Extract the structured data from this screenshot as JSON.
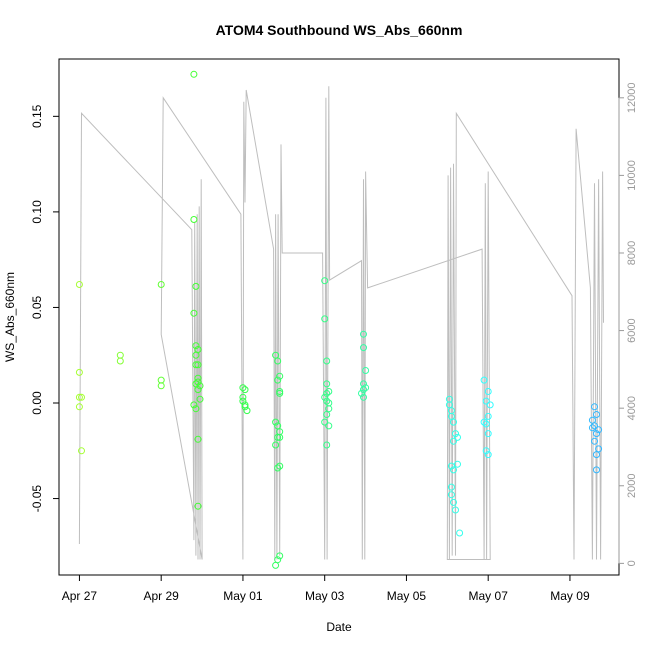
{
  "chart_data": {
    "type": "scatter",
    "title": "ATOM4 Southbound WS_Abs_660nm",
    "xlabel": "Date",
    "ylabel": "WS_Abs_660nm",
    "x_ticks": [
      "Apr 27",
      "Apr 29",
      "May 01",
      "May 03",
      "May 05",
      "May 07",
      "May 09"
    ],
    "x_tick_days": [
      0,
      2,
      4,
      6,
      8,
      10,
      12
    ],
    "xlim_days": [
      -0.5,
      13.2
    ],
    "ylim": [
      -0.09,
      0.18
    ],
    "y_ticks": [
      -0.05,
      0.0,
      0.05,
      0.1,
      0.15
    ],
    "y_tick_labels": [
      "-0.05",
      "0.00",
      "0.05",
      "0.10",
      "0.15"
    ],
    "y2_lim": [
      -300,
      13000
    ],
    "y2_ticks": [
      0,
      2000,
      4000,
      6000,
      8000,
      10000,
      12000
    ],
    "y2_tick_labels": [
      "0",
      "2000",
      "4000",
      "6000",
      "8000",
      "10000",
      "12000"
    ],
    "grid": false,
    "colors": {
      "altitude_line": "#bebebe",
      "point_gradient": [
        "#a6ff33",
        "#33ff33",
        "#33ff99",
        "#33ffff",
        "#33aaff"
      ]
    },
    "series": [
      {
        "kind": "points",
        "points": [
          [
            0.0,
            0.062
          ],
          [
            0.0,
            0.016
          ],
          [
            0.0,
            0.003
          ],
          [
            0.05,
            0.003
          ],
          [
            0.0,
            -0.002
          ],
          [
            0.05,
            -0.025
          ],
          [
            1.0,
            0.025
          ],
          [
            1.0,
            0.022
          ],
          [
            2.0,
            0.062
          ],
          [
            2.0,
            0.012
          ],
          [
            2.0,
            0.009
          ],
          [
            2.8,
            0.172
          ],
          [
            2.8,
            0.096
          ],
          [
            2.85,
            0.061
          ],
          [
            2.8,
            0.047
          ],
          [
            2.85,
            0.03
          ],
          [
            2.9,
            0.028
          ],
          [
            2.85,
            0.025
          ],
          [
            2.9,
            0.02
          ],
          [
            2.85,
            0.02
          ],
          [
            2.9,
            0.013
          ],
          [
            2.9,
            0.011
          ],
          [
            2.85,
            0.01
          ],
          [
            2.95,
            0.009
          ],
          [
            2.9,
            0.007
          ],
          [
            2.95,
            0.002
          ],
          [
            2.8,
            -0.001
          ],
          [
            2.85,
            -0.003
          ],
          [
            2.9,
            -0.019
          ],
          [
            2.9,
            -0.054
          ],
          [
            4.0,
            0.008
          ],
          [
            4.05,
            0.007
          ],
          [
            4.0,
            0.003
          ],
          [
            4.0,
            0.001
          ],
          [
            4.05,
            -0.001
          ],
          [
            4.05,
            -0.002
          ],
          [
            4.1,
            -0.004
          ],
          [
            4.8,
            0.025
          ],
          [
            4.85,
            0.022
          ],
          [
            4.9,
            0.014
          ],
          [
            4.85,
            0.012
          ],
          [
            4.9,
            0.006
          ],
          [
            4.9,
            0.005
          ],
          [
            4.8,
            -0.01
          ],
          [
            4.85,
            -0.012
          ],
          [
            4.9,
            -0.015
          ],
          [
            4.85,
            -0.018
          ],
          [
            4.9,
            -0.018
          ],
          [
            4.8,
            -0.022
          ],
          [
            4.9,
            -0.033
          ],
          [
            4.85,
            -0.034
          ],
          [
            4.9,
            -0.08
          ],
          [
            4.85,
            -0.082
          ],
          [
            4.8,
            -0.085
          ],
          [
            6.0,
            0.064
          ],
          [
            6.0,
            0.044
          ],
          [
            6.05,
            0.022
          ],
          [
            6.05,
            0.01
          ],
          [
            6.1,
            0.006
          ],
          [
            6.05,
            0.005
          ],
          [
            6.0,
            0.003
          ],
          [
            6.05,
            0.001
          ],
          [
            6.1,
            0.0
          ],
          [
            6.1,
            -0.003
          ],
          [
            6.05,
            -0.006
          ],
          [
            6.0,
            -0.01
          ],
          [
            6.1,
            -0.012
          ],
          [
            6.05,
            -0.022
          ],
          [
            6.95,
            0.036
          ],
          [
            6.95,
            0.029
          ],
          [
            7.0,
            0.017
          ],
          [
            6.95,
            0.01
          ],
          [
            7.0,
            0.008
          ],
          [
            6.95,
            0.007
          ],
          [
            6.9,
            0.005
          ],
          [
            6.95,
            0.003
          ],
          [
            9.05,
            0.002
          ],
          [
            9.05,
            -0.001
          ],
          [
            9.1,
            -0.004
          ],
          [
            9.1,
            -0.007
          ],
          [
            9.15,
            -0.01
          ],
          [
            9.2,
            -0.016
          ],
          [
            9.25,
            -0.018
          ],
          [
            9.15,
            -0.02
          ],
          [
            9.1,
            -0.033
          ],
          [
            9.15,
            -0.035
          ],
          [
            9.25,
            -0.032
          ],
          [
            9.1,
            -0.044
          ],
          [
            9.1,
            -0.048
          ],
          [
            9.15,
            -0.052
          ],
          [
            9.2,
            -0.056
          ],
          [
            9.3,
            -0.068
          ],
          [
            9.9,
            0.012
          ],
          [
            10.0,
            0.006
          ],
          [
            9.95,
            0.001
          ],
          [
            10.05,
            -0.001
          ],
          [
            10.0,
            -0.007
          ],
          [
            9.9,
            -0.01
          ],
          [
            9.95,
            -0.011
          ],
          [
            10.0,
            -0.016
          ],
          [
            9.95,
            -0.025
          ],
          [
            10.0,
            -0.027
          ],
          [
            12.6,
            -0.002
          ],
          [
            12.65,
            -0.006
          ],
          [
            12.55,
            -0.009
          ],
          [
            12.6,
            -0.012
          ],
          [
            12.55,
            -0.013
          ],
          [
            12.7,
            -0.014
          ],
          [
            12.65,
            -0.016
          ],
          [
            12.6,
            -0.02
          ],
          [
            12.7,
            -0.024
          ],
          [
            12.65,
            -0.027
          ],
          [
            12.65,
            -0.035
          ]
        ]
      },
      {
        "kind": "line",
        "axis": "right",
        "points": [
          [
            0.0,
            500
          ],
          [
            0.05,
            11600
          ],
          [
            2.75,
            8600
          ],
          [
            2.8,
            600
          ],
          [
            2.82,
            8800
          ],
          [
            2.85,
            200
          ],
          [
            2.88,
            9000
          ],
          [
            2.9,
            100
          ],
          [
            2.93,
            9200
          ],
          [
            2.95,
            100
          ],
          [
            2.98,
            9900
          ],
          [
            3.0,
            100
          ],
          [
            2.0,
            5900
          ],
          [
            2.05,
            12000
          ],
          [
            3.95,
            9000
          ],
          [
            4.0,
            100
          ],
          [
            4.02,
            11900
          ],
          [
            4.05,
            9300
          ],
          [
            4.08,
            12200
          ],
          [
            4.75,
            8100
          ],
          [
            4.78,
            100
          ],
          [
            4.8,
            9000
          ],
          [
            4.83,
            100
          ],
          [
            4.86,
            9000
          ],
          [
            4.9,
            200
          ],
          [
            4.93,
            10800
          ],
          [
            4.96,
            8000
          ],
          [
            5.95,
            8000
          ],
          [
            6.0,
            100
          ],
          [
            6.03,
            12000
          ],
          [
            6.06,
            100
          ],
          [
            6.1,
            12300
          ],
          [
            6.12,
            7300
          ],
          [
            6.9,
            7800
          ],
          [
            6.92,
            100
          ],
          [
            6.95,
            9900
          ],
          [
            6.98,
            100
          ],
          [
            7.0,
            10100
          ],
          [
            7.05,
            7100
          ],
          [
            9.85,
            8100
          ],
          [
            9.9,
            100
          ],
          [
            9.93,
            9800
          ],
          [
            9.96,
            100
          ],
          [
            10.0,
            10100
          ],
          [
            10.05,
            100
          ],
          [
            9.0,
            100
          ],
          [
            9.02,
            10000
          ],
          [
            9.05,
            100
          ],
          [
            9.08,
            10200
          ],
          [
            9.12,
            200
          ],
          [
            9.15,
            10300
          ],
          [
            9.2,
            200
          ],
          [
            9.22,
            11600
          ],
          [
            12.05,
            6900
          ],
          [
            12.1,
            100
          ],
          [
            12.15,
            11200
          ],
          [
            12.5,
            7100
          ],
          [
            12.55,
            100
          ],
          [
            12.6,
            9800
          ],
          [
            12.65,
            100
          ],
          [
            12.7,
            9900
          ],
          [
            12.75,
            100
          ],
          [
            12.8,
            10100
          ],
          [
            12.82,
            6200
          ]
        ]
      }
    ]
  }
}
